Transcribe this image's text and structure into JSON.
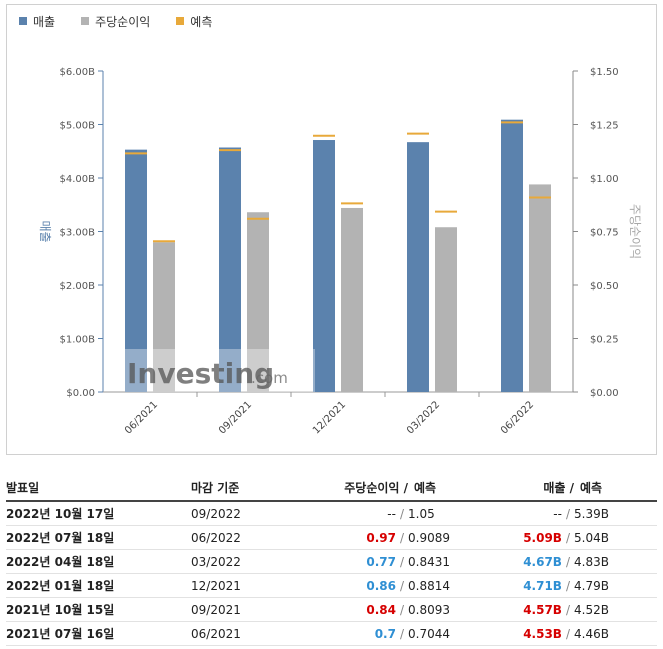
{
  "legend": [
    {
      "label": "매출",
      "color": "#5b82ad"
    },
    {
      "label": "주당순이익",
      "color": "#b3b3b3"
    },
    {
      "label": "예측",
      "color": "#e8a93a"
    }
  ],
  "chart_data": {
    "type": "bar",
    "categories": [
      "06/2021",
      "09/2021",
      "12/2021",
      "03/2022",
      "06/2022"
    ],
    "series": [
      {
        "name": "매출",
        "axis": "left",
        "values": [
          4.53,
          4.57,
          4.71,
          4.67,
          5.09
        ],
        "forecast": [
          4.46,
          4.52,
          4.79,
          4.83,
          5.04
        ],
        "color": "#5b82ad"
      },
      {
        "name": "주당순이익",
        "axis": "right",
        "values": [
          0.7,
          0.84,
          0.86,
          0.77,
          0.97
        ],
        "forecast": [
          0.7044,
          0.8093,
          0.8814,
          0.8431,
          0.9089
        ],
        "color": "#b3b3b3"
      }
    ],
    "forecast_color": "#e8a93a",
    "ylabel": "매출",
    "ylabel_right": "주당순이익",
    "ylim": [
      0,
      6
    ],
    "ylim_right": [
      0,
      1.5
    ],
    "yticks": [
      "$0.00",
      "$1.00B",
      "$2.00B",
      "$3.00B",
      "$4.00B",
      "$5.00B",
      "$6.00B"
    ],
    "yticks_right": [
      "$0.00",
      "$0.25",
      "$0.50",
      "$0.75",
      "$1.00",
      "$1.25",
      "$1.50"
    ],
    "watermark": "Investing",
    "watermark_suffix": ".com"
  },
  "table": {
    "headers": {
      "date": "발표일",
      "period": "마감 기준",
      "eps": "주당순이익 /",
      "eps_fc": "예측",
      "rev": "매출 /",
      "rev_fc": "예측"
    },
    "rows": [
      {
        "date": "2022년 10월 17일",
        "period": "09/2022",
        "eps": "--",
        "eps_sep": "/",
        "eps_fc": "1.05",
        "eps_state": "neu",
        "rev": "--",
        "rev_sep": "/",
        "rev_fc": "5.39B",
        "rev_state": "neu"
      },
      {
        "date": "2022년 07월 18일",
        "period": "06/2022",
        "eps": "0.97",
        "eps_sep": "/",
        "eps_fc": "0.9089",
        "eps_state": "neg",
        "rev": "5.09B",
        "rev_sep": "/",
        "rev_fc": "5.04B",
        "rev_state": "neg"
      },
      {
        "date": "2022년 04월 18일",
        "period": "03/2022",
        "eps": "0.77",
        "eps_sep": "/",
        "eps_fc": "0.8431",
        "eps_state": "pos",
        "rev": "4.67B",
        "rev_sep": "/",
        "rev_fc": "4.83B",
        "rev_state": "pos"
      },
      {
        "date": "2022년 01월 18일",
        "period": "12/2021",
        "eps": "0.86",
        "eps_sep": "/",
        "eps_fc": "0.8814",
        "eps_state": "pos",
        "rev": "4.71B",
        "rev_sep": "/",
        "rev_fc": "4.79B",
        "rev_state": "pos"
      },
      {
        "date": "2021년 10월 15일",
        "period": "09/2021",
        "eps": "0.84",
        "eps_sep": "/",
        "eps_fc": "0.8093",
        "eps_state": "neg",
        "rev": "4.57B",
        "rev_sep": "/",
        "rev_fc": "4.52B",
        "rev_state": "neg"
      },
      {
        "date": "2021년 07월 16일",
        "period": "06/2021",
        "eps": "0.7",
        "eps_sep": "/",
        "eps_fc": "0.7044",
        "eps_state": "pos",
        "rev": "4.53B",
        "rev_sep": "/",
        "rev_fc": "4.46B",
        "rev_state": "neg"
      }
    ]
  }
}
